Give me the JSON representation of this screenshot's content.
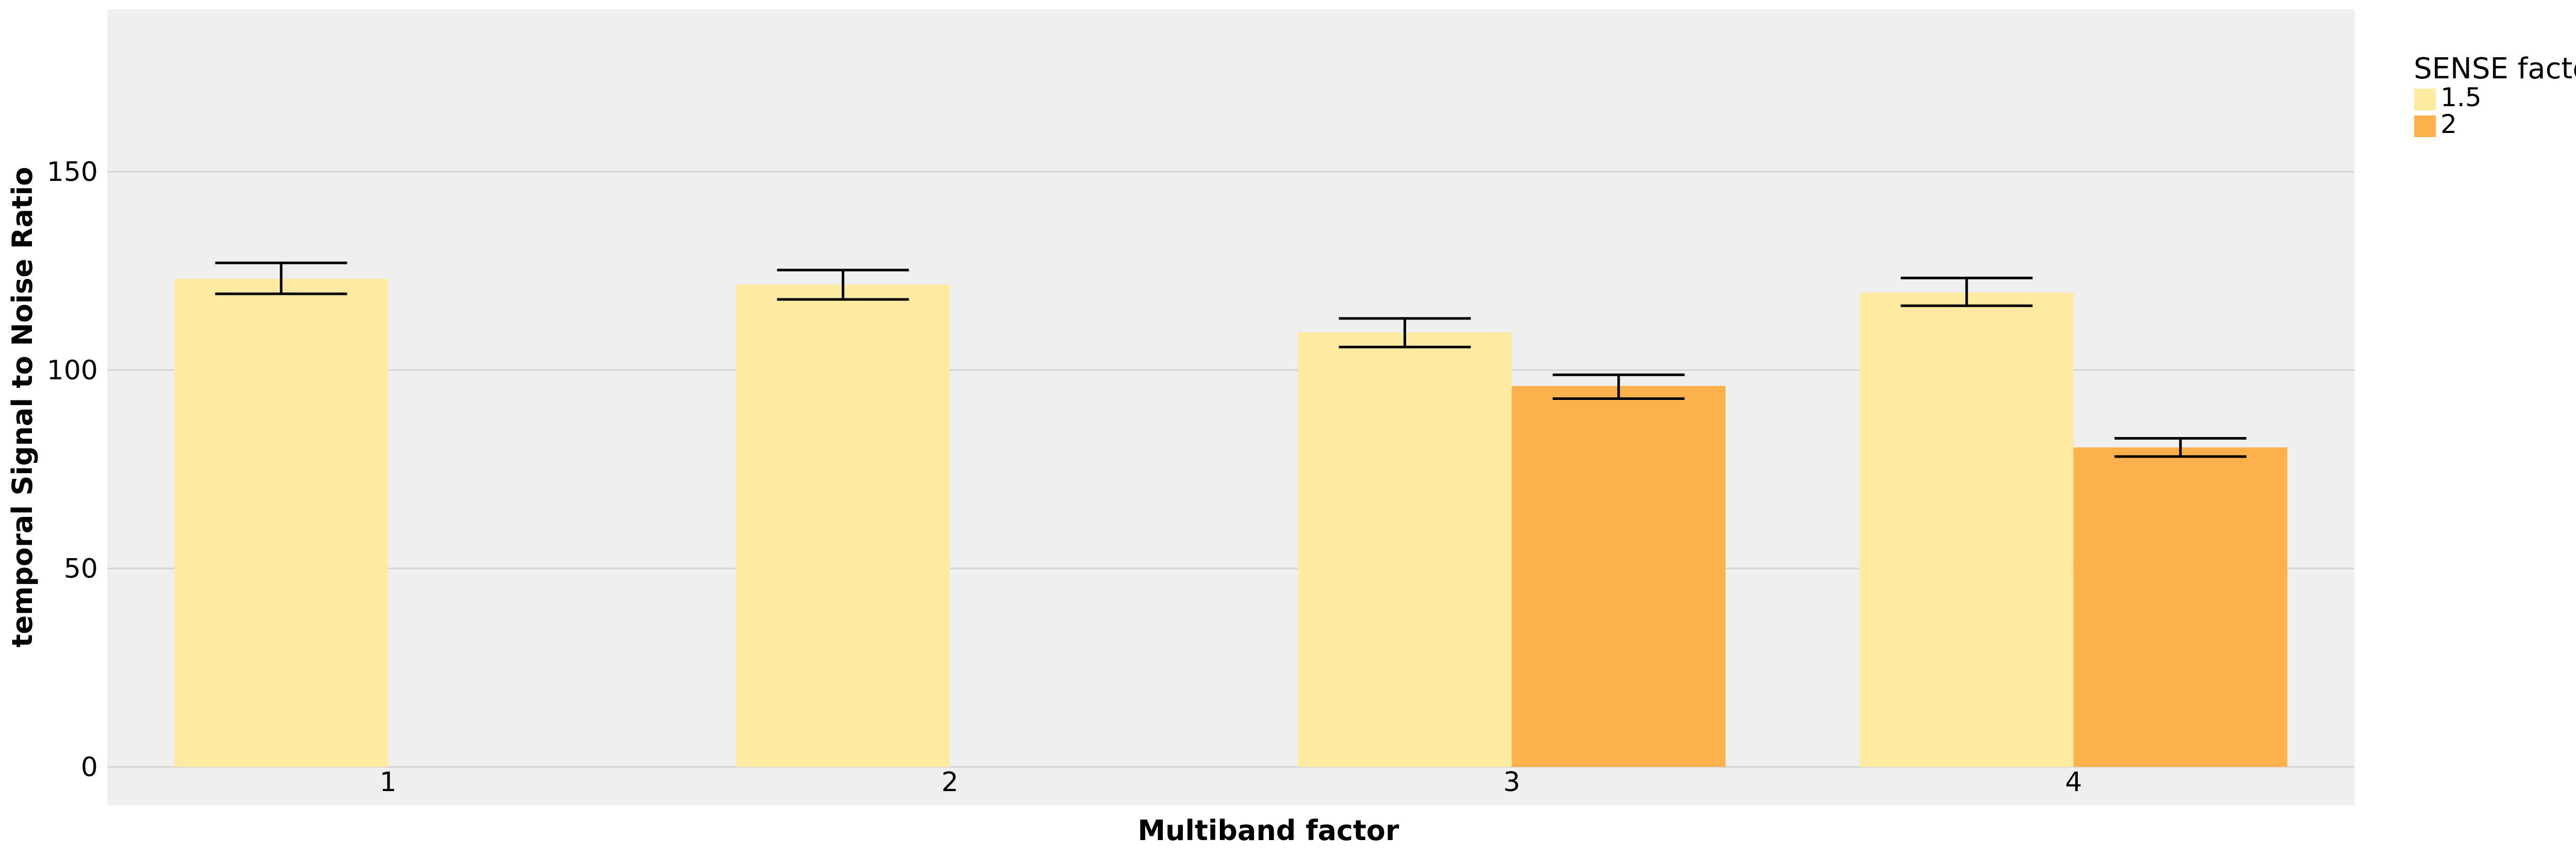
{
  "chart_data": {
    "type": "bar",
    "title": "",
    "xlabel": "Multiband factor",
    "ylabel": "temporal Signal to Noise Ratio",
    "categories": [
      "1",
      "2",
      "3",
      "4"
    ],
    "ylim": [
      0,
      190
    ],
    "yticks": [
      0,
      50,
      100,
      150
    ],
    "yticklabels": [
      "0",
      "50",
      "100",
      "150"
    ],
    "grid": true,
    "legend": {
      "title": "SENSE factor",
      "position": "top-right"
    },
    "series": [
      {
        "name": "1.5",
        "color": "#FEEBA1",
        "values": [
          123,
          121.5,
          109.5,
          119.5
        ],
        "err_low": [
          119.2,
          117.8,
          105.8,
          116.2
        ],
        "err_high": [
          127,
          125.2,
          113,
          123.2
        ]
      },
      {
        "name": "2",
        "color": "#FDB14D",
        "values": [
          null,
          null,
          96,
          80.5
        ],
        "err_low": [
          null,
          null,
          92.8,
          78.2
        ],
        "err_high": [
          null,
          null,
          98.8,
          82.8
        ]
      }
    ]
  },
  "colors": {
    "panel_background": "#EFEFEF",
    "gridline": "#D4D4D4",
    "page_background": "#FFFFFF"
  }
}
